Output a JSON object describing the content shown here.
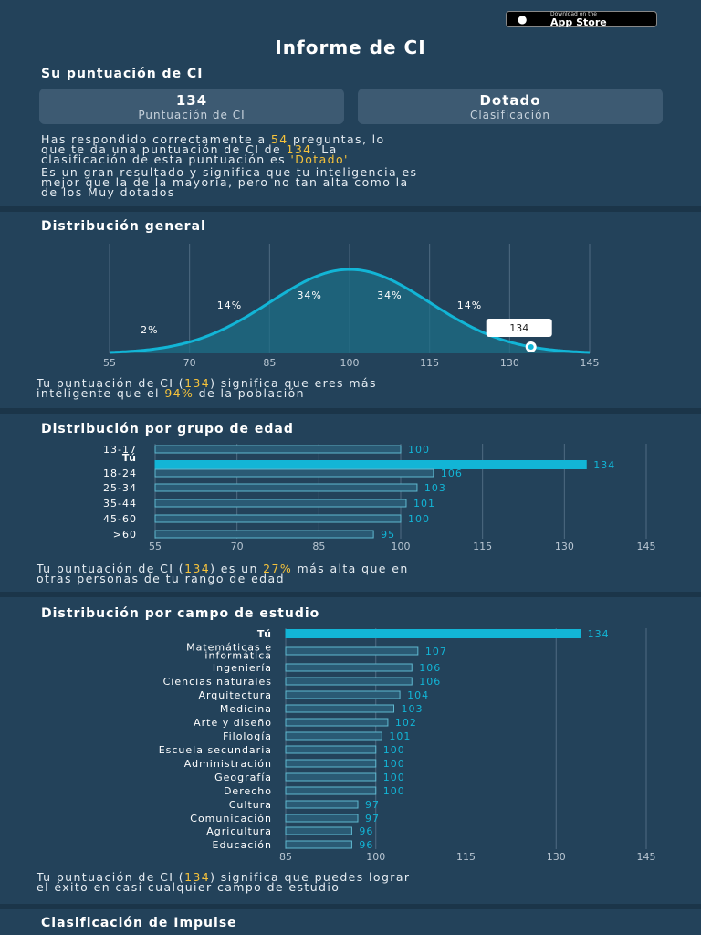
{
  "appstore": {
    "small": "Download on the",
    "big": "App Store",
    "icon": "apple-logo-icon"
  },
  "title": "Informe de CI",
  "score_section": {
    "heading": "Su puntuación de CI",
    "score_value": "134",
    "score_label": "Puntuación de CI",
    "class_value": "Dotado",
    "class_label": "Clasificación",
    "p1_a": "Has respondido correctamente a ",
    "p1_correct": "54",
    "p1_b": " preguntas, lo",
    "p1_c": "que te da una puntuación de CI de ",
    "p1_score": "134",
    "p1_d": ". La",
    "p1_e": "clasificación de esta puntuación es ",
    "p1_class": "'Dotado'",
    "p2_l1": "Es un gran resultado y significa que tu inteligencia es",
    "p2_l2": "mejor que la de la mayoría, pero no tan alta como la",
    "p2_l3": "de los Muy dotados"
  },
  "general": {
    "heading": "Distribución general",
    "t1_a": "Tu puntuación de CI (",
    "t1_score": "134",
    "t1_b": ") significa que eres más",
    "t2_a": "inteligente que el ",
    "t2_pct": "94%",
    "t2_b": " de la población"
  },
  "age": {
    "heading": "Distribución por grupo de edad",
    "t1_a": "Tu puntuación de CI (",
    "t1_score": "134",
    "t1_b": ") es un ",
    "t1_pct": "27%",
    "t1_c": " más alta que en",
    "t2": "otras personas de tu rango de edad"
  },
  "field": {
    "heading": "Distribución por campo de estudio",
    "t1_a": "Tu puntuación de CI (",
    "t1_score": "134",
    "t1_b": ") significa que puedes lograr",
    "t2": "el éxito en casi cualquier campo de estudio"
  },
  "impulse": {
    "heading": "Clasificación de Impulse"
  },
  "colors": {
    "bg": "#23425a",
    "accent": "#12b5d6",
    "highlight": "#f5c23b"
  },
  "chart_data": [
    {
      "type": "area",
      "title": "Distribución general",
      "x_ticks": [
        "55",
        "70",
        "85",
        "100",
        "115",
        "130",
        "145"
      ],
      "xlim": [
        55,
        145
      ],
      "mean": 100,
      "sd": 15,
      "band_labels": [
        {
          "x": 62.5,
          "label": "2%"
        },
        {
          "x": 77.5,
          "label": "14%"
        },
        {
          "x": 92.5,
          "label": "34%"
        },
        {
          "x": 107.5,
          "label": "34%"
        },
        {
          "x": 122.5,
          "label": "14%"
        }
      ],
      "marker": {
        "x": 134,
        "label": "134"
      }
    },
    {
      "type": "bar",
      "orientation": "horizontal",
      "title": "Distribución por grupo de edad",
      "xlim": [
        55,
        145
      ],
      "x_ticks": [
        "55",
        "70",
        "85",
        "100",
        "115",
        "130",
        "145"
      ],
      "categories": [
        "13-17",
        "Tú",
        "18-24",
        "25-34",
        "35-44",
        "45-60",
        ">60"
      ],
      "values": [
        100,
        134,
        106,
        103,
        101,
        100,
        95
      ],
      "highlight": "Tú"
    },
    {
      "type": "bar",
      "orientation": "horizontal",
      "title": "Distribución por campo de estudio",
      "xlim": [
        85,
        145
      ],
      "x_ticks": [
        "85",
        "100",
        "115",
        "130",
        "145"
      ],
      "categories": [
        "Tú",
        "Matemáticas e informática",
        "Ingeniería",
        "Ciencias naturales",
        "Arquitectura",
        "Medicina",
        "Arte y diseño",
        "Filología",
        "Escuela secundaria",
        "Administración",
        "Geografía",
        "Derecho",
        "Cultura",
        "Comunicación",
        "Agricultura",
        "Educación"
      ],
      "values": [
        134,
        107,
        106,
        106,
        104,
        103,
        102,
        101,
        100,
        100,
        100,
        100,
        97,
        97,
        96,
        96
      ],
      "highlight": "Tú"
    }
  ]
}
